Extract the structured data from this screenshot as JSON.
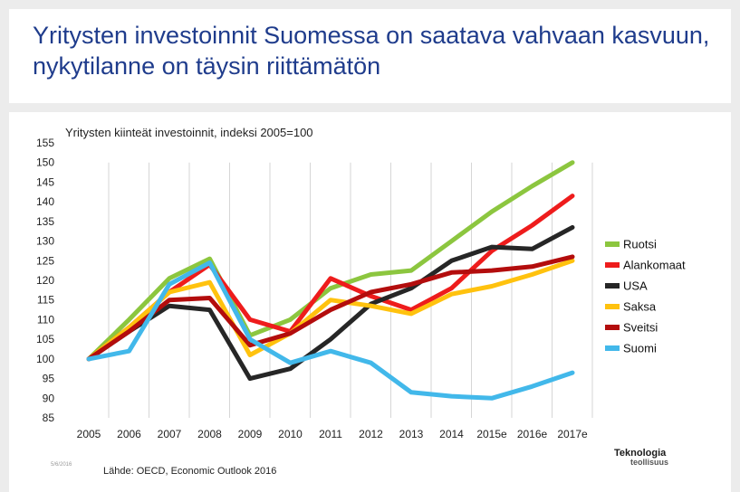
{
  "slide": {
    "title": "Yritysten investoinnit Suomessa on saatava vahvaan kasvuun, nykytilanne on täysin riittämätön",
    "source": "Lähde: OECD, Economic Outlook 2016",
    "date": "5/6/2016",
    "logo_main": "Teknologia",
    "logo_sub": "teollisuus"
  },
  "chart_data": {
    "type": "line",
    "title": "Yritysten kiinteät investoinnit, indeksi 2005=100",
    "xlabel": "",
    "ylabel": "",
    "categories": [
      "2005",
      "2006",
      "2007",
      "2008",
      "2009",
      "2010",
      "2011",
      "2012",
      "2013",
      "2014",
      "2015e",
      "2016e",
      "2017e"
    ],
    "ylim": [
      85,
      155
    ],
    "yticks": [
      85,
      90,
      95,
      100,
      105,
      110,
      115,
      120,
      125,
      130,
      135,
      140,
      145,
      150,
      155
    ],
    "grid": "vertical",
    "legend_position": "right",
    "series": [
      {
        "name": "Ruotsi",
        "color": "#8cc63f",
        "values": [
          100,
          110,
          120.5,
          125.5,
          106,
          110,
          118,
          121.5,
          122.5,
          130,
          137.5,
          144,
          150
        ]
      },
      {
        "name": "Alankomaat",
        "color": "#ee1c1c",
        "values": [
          100,
          108,
          117,
          124,
          110,
          107,
          120.5,
          116,
          112.5,
          118,
          127.5,
          134,
          141.5
        ]
      },
      {
        "name": "USA",
        "color": "#262626",
        "values": [
          100,
          107,
          113.5,
          112.5,
          95,
          97.5,
          105,
          114,
          118,
          125,
          128.5,
          128,
          133.5
        ]
      },
      {
        "name": "Saksa",
        "color": "#ffc20e",
        "values": [
          100,
          108,
          117,
          119.5,
          101,
          106.5,
          115,
          113.5,
          111.5,
          116.5,
          118.5,
          121.5,
          125
        ]
      },
      {
        "name": "Sveitsi",
        "color": "#b30d0d",
        "values": [
          100,
          107,
          115,
          115.5,
          103.5,
          106.5,
          112.5,
          117,
          119,
          122,
          122.5,
          123.5,
          126
        ]
      },
      {
        "name": "Suomi",
        "color": "#42b8ea",
        "values": [
          100,
          102,
          119,
          124.5,
          105,
          99,
          102,
          99,
          91.5,
          90.5,
          90,
          93,
          96.5
        ]
      }
    ]
  }
}
